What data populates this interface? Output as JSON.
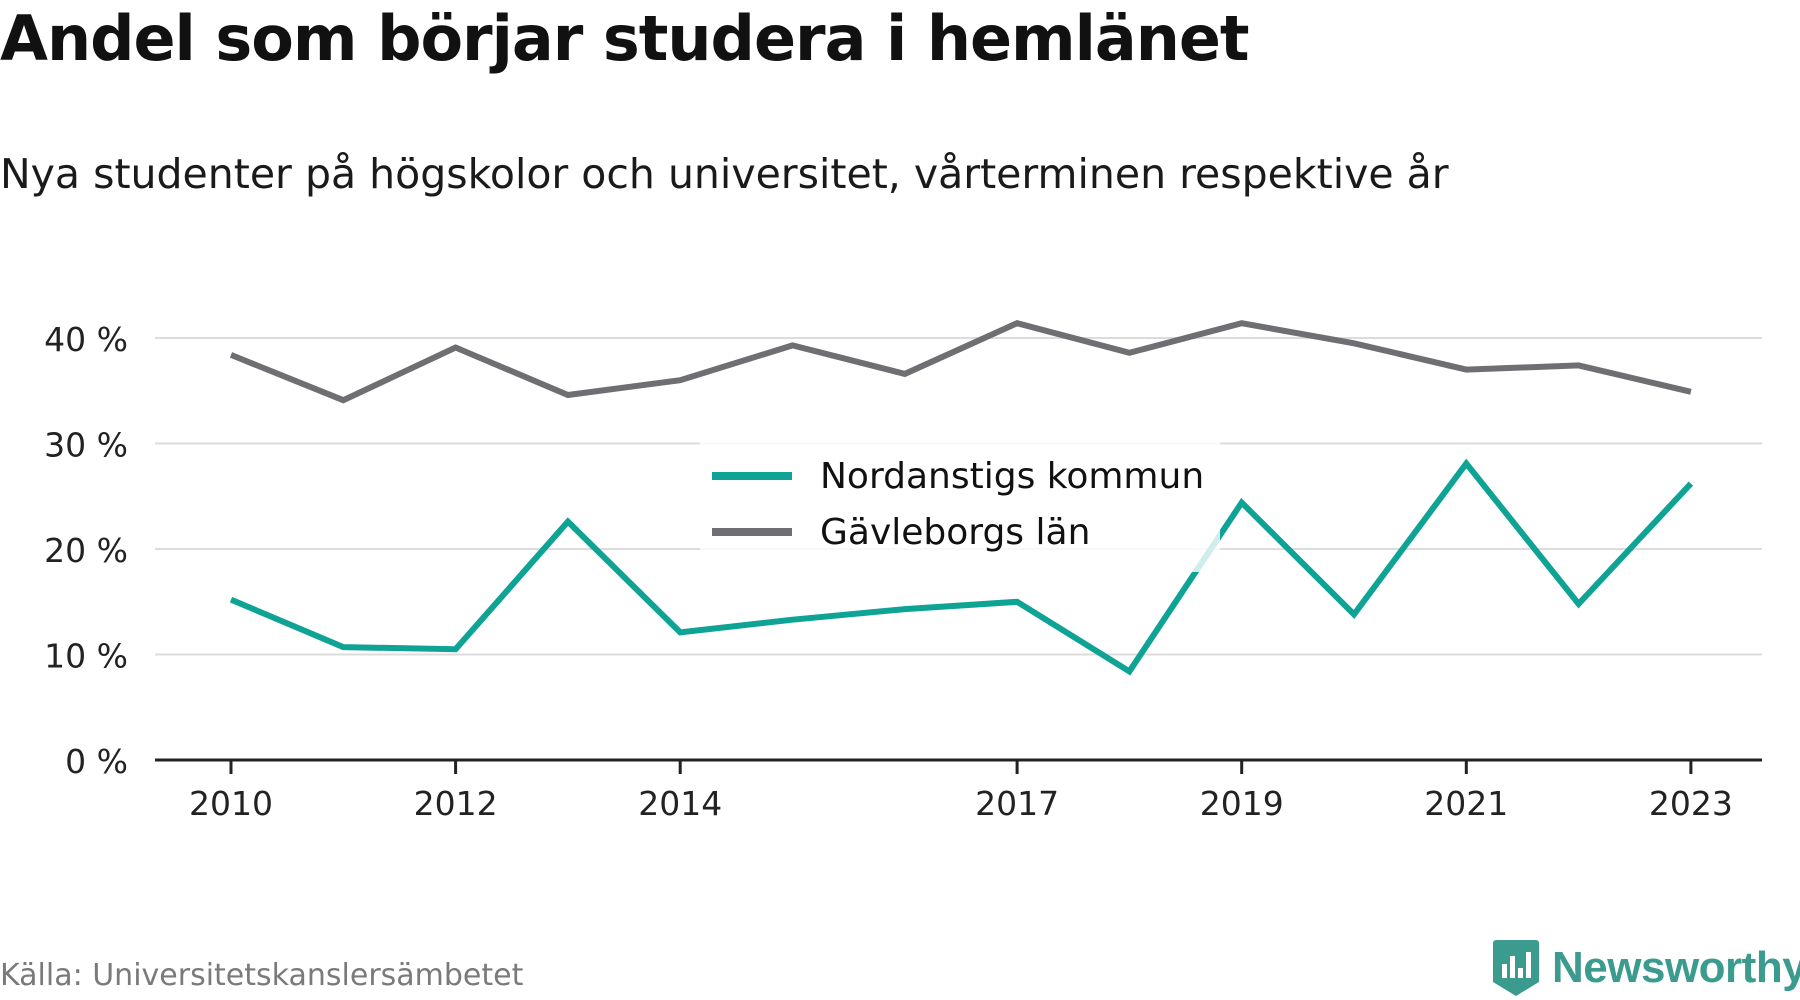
{
  "title": "Andel som börjar studera i hemlänet",
  "subtitle": "Nya studenter på högskolor och universitet, vårterminen respektive år",
  "source": "Källa: Universitetskanslersämbetet",
  "brand": {
    "name": "Newsworthy",
    "color": "#3c9b8f",
    "icon": "newsworthy-logo-icon"
  },
  "chart_data": {
    "type": "line",
    "x": [
      2010,
      2011,
      2012,
      2013,
      2014,
      2015,
      2016,
      2017,
      2018,
      2019,
      2020,
      2021,
      2022,
      2023
    ],
    "x_tick_labels": [
      "2010",
      "2012",
      "2014",
      "2017",
      "2019",
      "2021",
      "2023"
    ],
    "y_ticks": [
      0,
      10,
      20,
      30,
      40
    ],
    "y_tick_labels": [
      "0 %",
      "10 %",
      "20 %",
      "30 %",
      "40 %"
    ],
    "ylim": [
      0,
      45
    ],
    "grid": true,
    "legend_position": "center",
    "series": [
      {
        "name": "Nordanstigs kommun",
        "color": "#0fa396",
        "values": [
          15.2,
          10.7,
          10.5,
          22.6,
          12.1,
          13.3,
          14.3,
          15.0,
          8.4,
          24.4,
          13.8,
          28.1,
          14.8,
          26.2
        ]
      },
      {
        "name": "Gävleborgs län",
        "color": "#6f6e73",
        "values": [
          38.4,
          34.1,
          39.1,
          34.6,
          36.0,
          39.3,
          36.6,
          41.4,
          38.6,
          41.4,
          39.5,
          37.0,
          37.4,
          34.9
        ]
      }
    ]
  }
}
